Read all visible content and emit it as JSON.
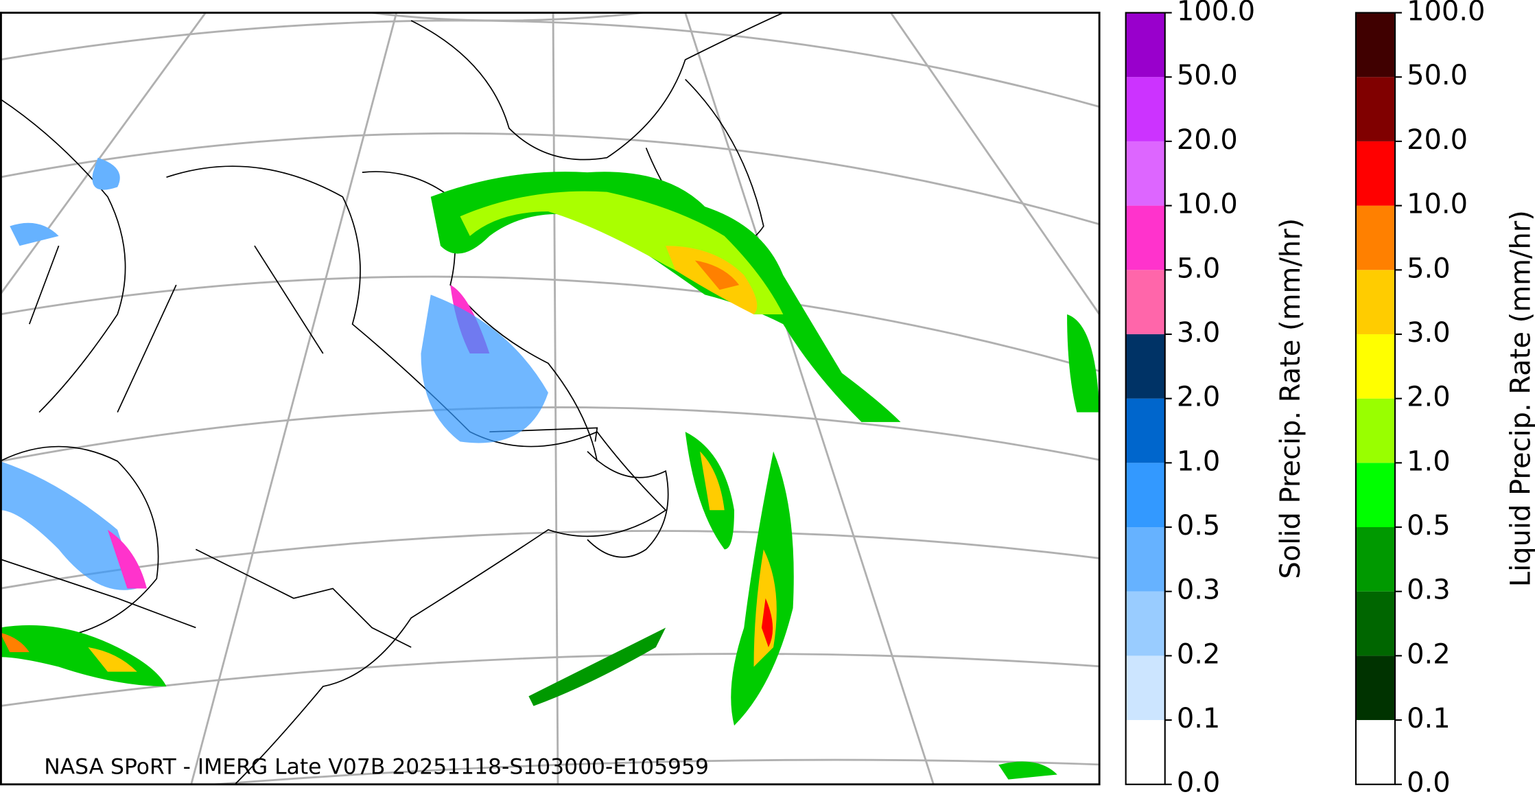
{
  "map": {
    "caption": "NASA SPoRT - IMERG Late V07B 20251118-S103000-E105959",
    "colorbars": [
      {
        "label": "Solid Precip. Rate (mm/hr)",
        "levels": [
          {
            "value": 0,
            "label": "0.0"
          },
          {
            "value": 0.1,
            "label": "0.1"
          },
          {
            "value": 0.2,
            "label": "0.2"
          },
          {
            "value": 0.3,
            "label": "0.3"
          },
          {
            "value": 0.5,
            "label": "0.5"
          },
          {
            "value": 1,
            "label": "1.0"
          },
          {
            "value": 2,
            "label": "2.0"
          },
          {
            "value": 3,
            "label": "3.0"
          },
          {
            "value": 5,
            "label": "5.0"
          },
          {
            "value": 10,
            "label": "10.0"
          },
          {
            "value": 20,
            "label": "20.0"
          },
          {
            "value": 50,
            "label": "50.0"
          },
          {
            "value": 100,
            "label": "100.0"
          }
        ],
        "colors": [
          "#ffffff",
          "#cce5ff",
          "#99ccff",
          "#66b2ff",
          "#3399ff",
          "#0066cc",
          "#003366",
          "#ff66aa",
          "#ff33cc",
          "#dd66ff",
          "#cc33ff",
          "#9900cc"
        ]
      },
      {
        "label": "Liquid Precip. Rate (mm/hr)",
        "levels": [
          {
            "value": 0,
            "label": "0.0"
          },
          {
            "value": 0.1,
            "label": "0.1"
          },
          {
            "value": 0.2,
            "label": "0.2"
          },
          {
            "value": 0.3,
            "label": "0.3"
          },
          {
            "value": 0.5,
            "label": "0.5"
          },
          {
            "value": 1,
            "label": "1.0"
          },
          {
            "value": 2,
            "label": "2.0"
          },
          {
            "value": 3,
            "label": "3.0"
          },
          {
            "value": 5,
            "label": "5.0"
          },
          {
            "value": 10,
            "label": "10.0"
          },
          {
            "value": 20,
            "label": "20.0"
          },
          {
            "value": 50,
            "label": "50.0"
          },
          {
            "value": 100,
            "label": "100.0"
          }
        ],
        "colors": [
          "#ffffff",
          "#003300",
          "#006600",
          "#009900",
          "#00ff00",
          "#99ff00",
          "#ffff00",
          "#ffcc00",
          "#ff8000",
          "#ff0000",
          "#800000",
          "#400000"
        ]
      }
    ]
  }
}
